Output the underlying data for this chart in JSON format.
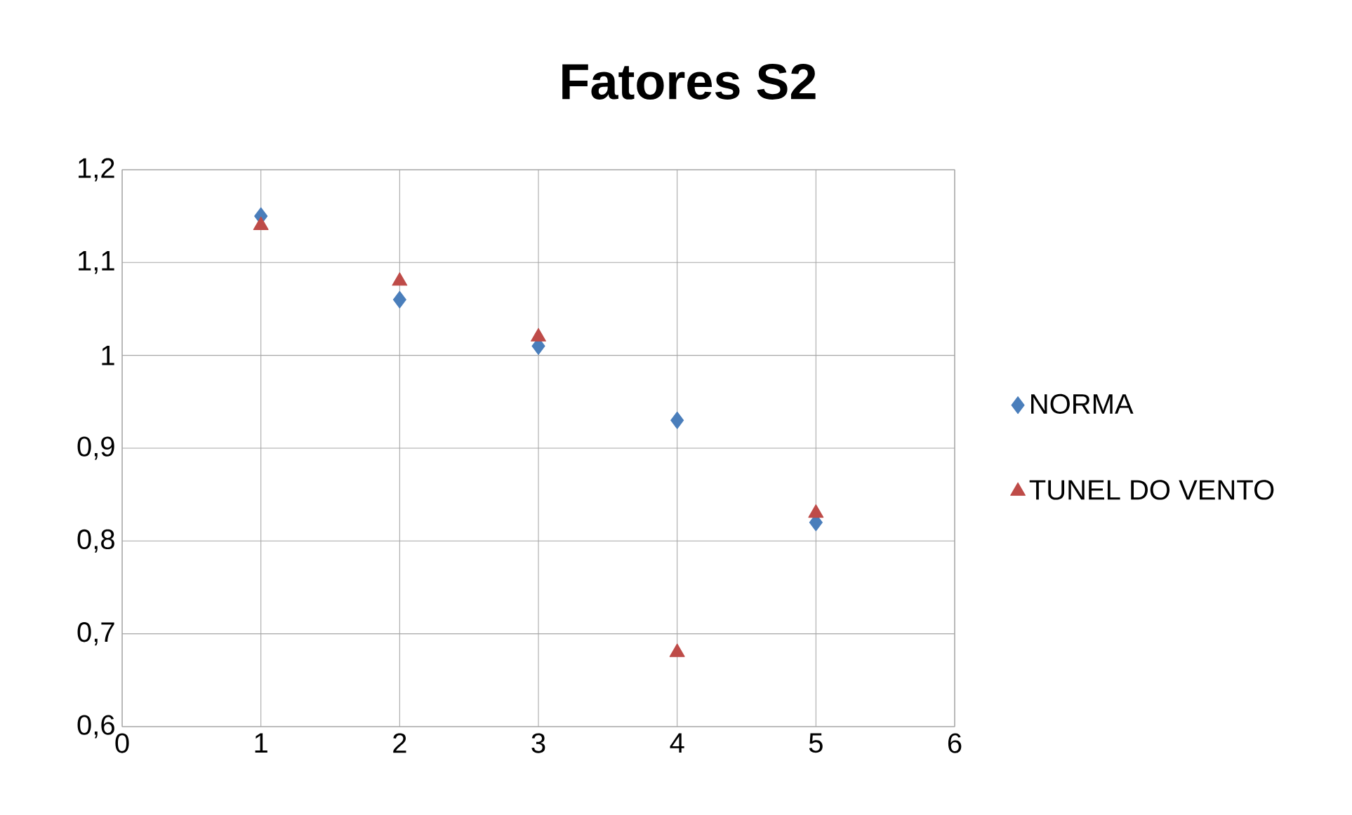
{
  "chart_data": {
    "type": "scatter",
    "title": "Fatores S2",
    "x": [
      1,
      2,
      3,
      4,
      5
    ],
    "series": [
      {
        "name": "NORMA",
        "color": "#4a7ebb",
        "marker": "diamond",
        "values": [
          1.15,
          1.06,
          1.01,
          0.93,
          0.82
        ]
      },
      {
        "name": "TUNEL DO VENTO",
        "color": "#be4b48",
        "marker": "triangle",
        "values": [
          1.14,
          1.08,
          1.02,
          0.68,
          0.83
        ]
      }
    ],
    "xlim": [
      0,
      6
    ],
    "xticks": [
      0,
      1,
      2,
      3,
      4,
      5,
      6
    ],
    "ylim": [
      0.6,
      1.2
    ],
    "yticks": [
      {
        "value": 0.6,
        "label": "0,6"
      },
      {
        "value": 0.7,
        "label": "0,7"
      },
      {
        "value": 0.8,
        "label": "0,8"
      },
      {
        "value": 0.9,
        "label": "0,9"
      },
      1,
      {
        "value": 1.1,
        "label": "1,1"
      },
      {
        "value": 1.2,
        "label": "1,2"
      }
    ],
    "grid": true,
    "legend": "right"
  }
}
